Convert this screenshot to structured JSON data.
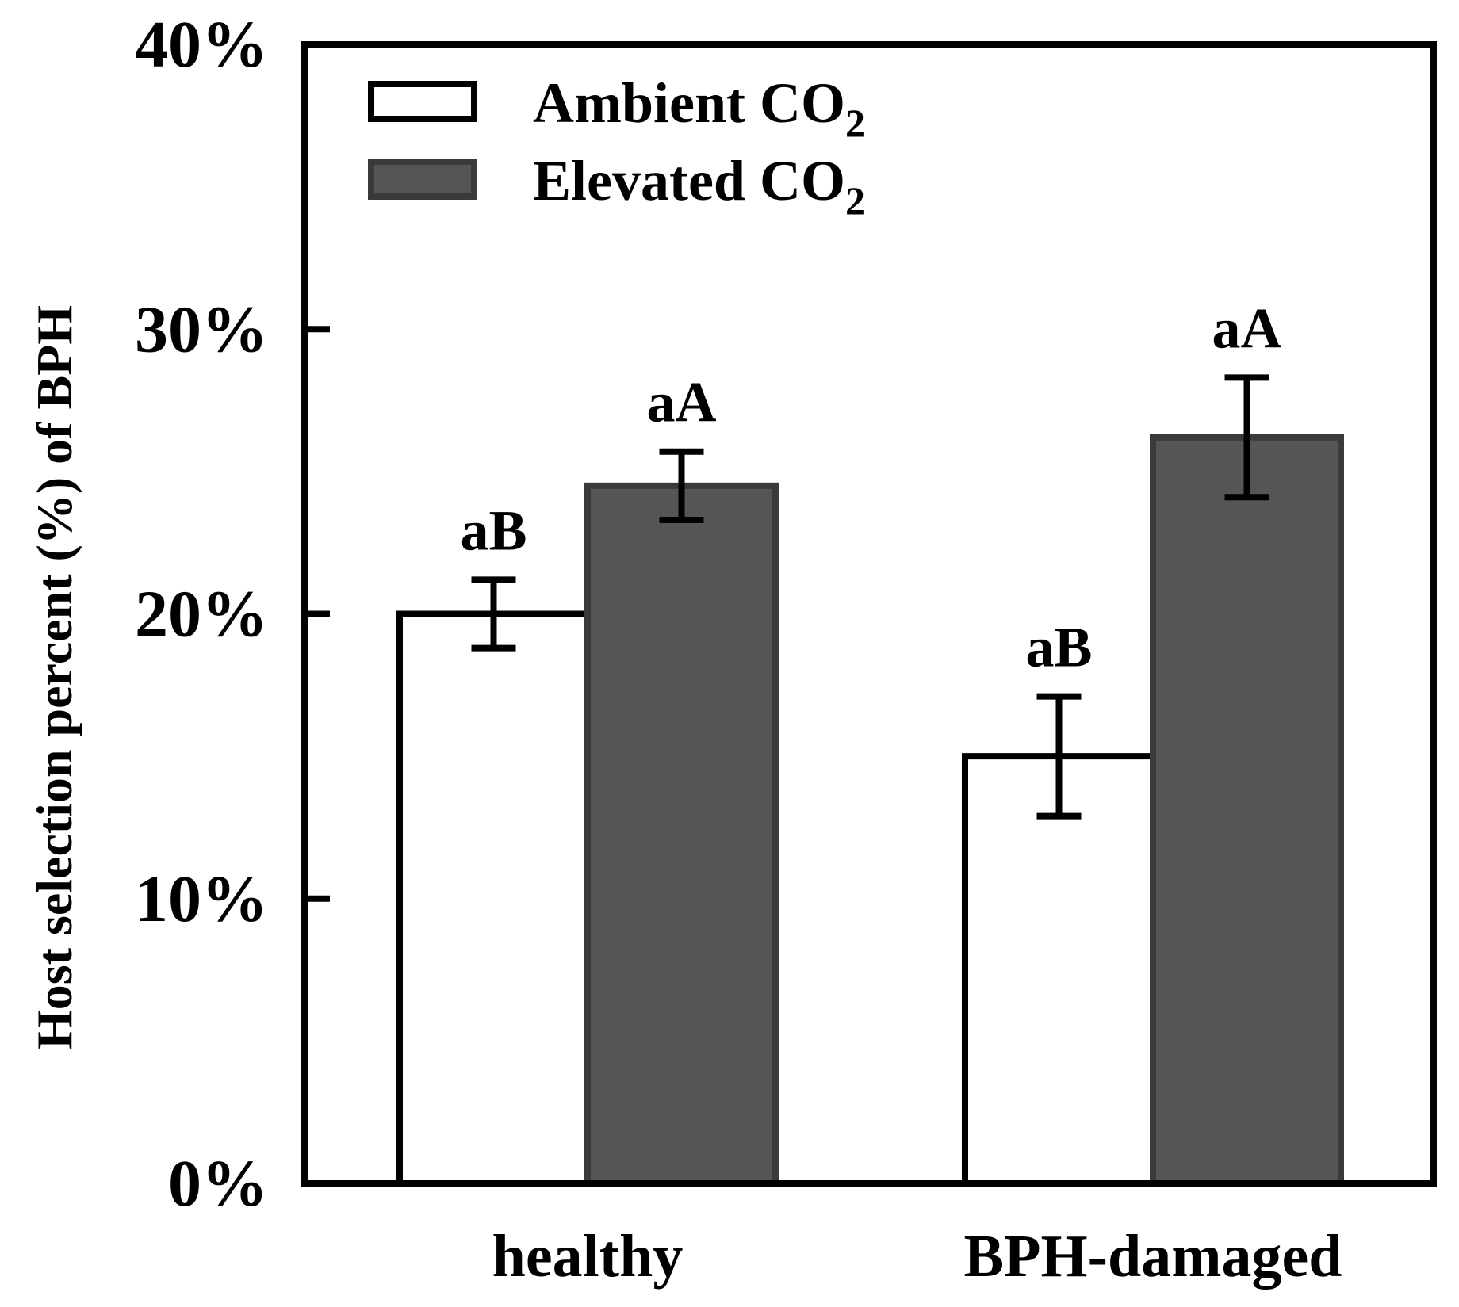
{
  "chart_data": {
    "type": "bar",
    "title": "",
    "xlabel": "",
    "ylabel": "Host selection percent (%) of BPH",
    "categories": [
      "healthy",
      "BPH-damaged"
    ],
    "ylim": [
      0,
      40
    ],
    "yticks": [
      0,
      10,
      20,
      30,
      40
    ],
    "ytick_labels": [
      "0%",
      "10%",
      "20%",
      "30%",
      "40%"
    ],
    "legend_position": "top-left",
    "series": [
      {
        "name": "Ambient CO2",
        "legend_text": "Ambient CO",
        "legend_sub": "2",
        "color": "#ffffff",
        "values": [
          20.0,
          15.0
        ],
        "errors": [
          1.2,
          2.1
        ],
        "labels": [
          "aB",
          "aB"
        ]
      },
      {
        "name": "Elevated CO2",
        "legend_text": "Elevated CO",
        "legend_sub": "2",
        "color": "#555555",
        "values": [
          24.5,
          26.2
        ],
        "errors": [
          1.2,
          2.1
        ],
        "labels": [
          "aA",
          "aA"
        ]
      }
    ]
  }
}
